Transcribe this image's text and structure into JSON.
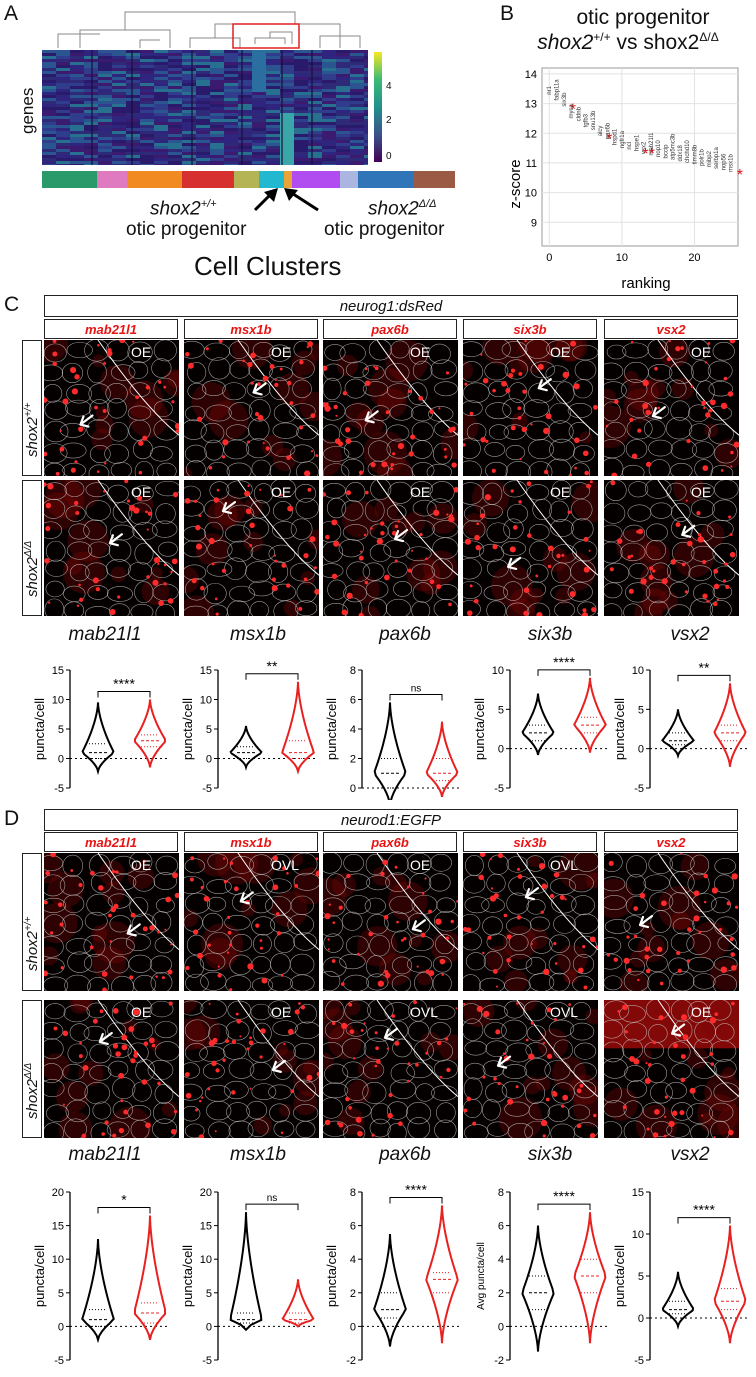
{
  "panel_a": {
    "letter": "A",
    "genes_label": "genes",
    "colorbar_ticks": [
      "4",
      "2",
      "0"
    ],
    "cluster_colors": [
      "#2a9a6a",
      "#e07ac0",
      "#f28a22",
      "#d63030",
      "#b4b455",
      "#22b8cf",
      "#e9a437",
      "#b04cf0",
      "#aab6e0",
      "#2f75b8",
      "#9a5a44"
    ],
    "label_wt_gene": "shox2",
    "label_wt_sup": "+/+",
    "label_wt_cell": "otic progenitor",
    "label_mut_gene": "shox2",
    "label_mut_sup": "Δ/Δ",
    "label_mut_cell": "otic progenitor",
    "xlabel": "Cell Clusters"
  },
  "panel_b": {
    "letter": "B",
    "title_line1": "otic progenitor",
    "title_wt": "shox2",
    "title_wt_sup": "+/+",
    "title_vs": " vs shox2",
    "title_mut_sup": "Δ/Δ",
    "chart_data": {
      "type": "scatter",
      "xlabel": "ranking",
      "ylabel": "z-score",
      "xlim": [
        -1,
        26
      ],
      "ylim": [
        8.2,
        14.2
      ],
      "xticks": [
        "0",
        "10",
        "20"
      ],
      "yticks": [
        "9",
        "10",
        "11",
        "12",
        "13",
        "14"
      ],
      "grid": true,
      "points": [
        {
          "label": "nr1",
          "x": 0,
          "y": 13.3
        },
        {
          "label": "fabp11a",
          "x": 1,
          "y": 13.1
        },
        {
          "label": "six3b",
          "x": 2,
          "y": 12.9,
          "star": "*"
        },
        {
          "label": "myca",
          "x": 3,
          "y": 12.5
        },
        {
          "label": "cldnb",
          "x": 4,
          "y": 12.4
        },
        {
          "label": "tgfb3",
          "x": 5,
          "y": 12.2
        },
        {
          "label": "snu13b",
          "x": 6,
          "y": 12.1
        },
        {
          "label": "alcy",
          "x": 7,
          "y": 11.9,
          "star": "*"
        },
        {
          "label": "pax6b",
          "x": 8,
          "y": 11.8
        },
        {
          "label": "hspd1",
          "x": 9,
          "y": 11.6
        },
        {
          "label": "ngfr1a",
          "x": 10,
          "y": 11.5
        },
        {
          "label": "ncl",
          "x": 11,
          "y": 11.45
        },
        {
          "label": "hspe1",
          "x": 12,
          "y": 11.4,
          "star": "**"
        },
        {
          "label": "vsx2",
          "x": 13,
          "y": 11.3
        },
        {
          "label": "mab21l1",
          "x": 14,
          "y": 11.25
        },
        {
          "label": "nop10",
          "x": 15,
          "y": 11.2
        },
        {
          "label": "bccip",
          "x": 16,
          "y": 11.15
        },
        {
          "label": "atp5mc3b",
          "x": 17,
          "y": 11.1
        },
        {
          "label": "ddx18",
          "x": 18,
          "y": 11.05
        },
        {
          "label": "chchd10",
          "x": 19,
          "y": 11.0
        },
        {
          "label": "timm8b",
          "x": 20,
          "y": 10.95
        },
        {
          "label": "polr1b",
          "x": 21,
          "y": 10.9
        },
        {
          "label": "mibp2",
          "x": 22,
          "y": 10.85
        },
        {
          "label": "serbp1a",
          "x": 23,
          "y": 10.8
        },
        {
          "label": "nop56",
          "x": 24,
          "y": 10.75
        },
        {
          "label": "msx1b",
          "x": 25,
          "y": 10.7,
          "star": "*"
        }
      ]
    }
  },
  "panel_c": {
    "letter": "C",
    "reporter": "neurog1:dsRed",
    "genes": [
      "mab21l1",
      "msx1b",
      "pax6b",
      "six3b",
      "vsx2"
    ],
    "row_wt_gene": "shox2",
    "row_wt_sup": "+/+",
    "row_mut_gene": "shox2",
    "row_mut_sup": "Δ/Δ",
    "tags_wt": [
      "OE",
      "OE",
      "OE",
      "OE",
      "OE"
    ],
    "tags_mut": [
      "OE",
      "OE",
      "OE",
      "OE",
      "OE"
    ],
    "ylabel": "puncta/cell",
    "chart_data": [
      {
        "type": "violin",
        "gene": "mab21l1",
        "sig": "****",
        "ylim": [
          -5,
          15
        ],
        "yticks": [
          "15",
          "10",
          "5",
          "0",
          "-5"
        ],
        "ylabel": "puncta/cell",
        "series": [
          {
            "group": "shox2+/+",
            "color": "#000000",
            "median": 1,
            "q1": 0,
            "q3": 2.5,
            "min": -2.2,
            "max": 9.5
          },
          {
            "group": "shox2Δ/Δ",
            "color": "#e82020",
            "median": 3,
            "q1": 2,
            "q3": 4,
            "min": -1.5,
            "max": 10
          }
        ]
      },
      {
        "type": "violin",
        "gene": "msx1b",
        "sig": "**",
        "ylim": [
          -5,
          15
        ],
        "yticks": [
          "15",
          "10",
          "5",
          "0",
          "-5"
        ],
        "ylabel": "puncta/cell",
        "series": [
          {
            "group": "shox2+/+",
            "color": "#000000",
            "median": 1,
            "q1": 0,
            "q3": 2,
            "min": -1.5,
            "max": 5.5
          },
          {
            "group": "shox2Δ/Δ",
            "color": "#e82020",
            "median": 1,
            "q1": 0,
            "q3": 3,
            "min": -2.2,
            "max": 13
          }
        ]
      },
      {
        "type": "violin",
        "gene": "pax6b",
        "sig": "ns",
        "ylim": [
          0,
          8
        ],
        "yticks": [
          "8",
          "6",
          "4",
          "2",
          "0"
        ],
        "ylabel": "puncta/cell",
        "series": [
          {
            "group": "shox2+/+",
            "color": "#000000",
            "median": 1,
            "q1": 0,
            "q3": 2,
            "min": -1.2,
            "max": 5.8
          },
          {
            "group": "shox2Δ/Δ",
            "color": "#e82020",
            "median": 1,
            "q1": 0.5,
            "q3": 2,
            "min": -0.6,
            "max": 4.5
          }
        ]
      },
      {
        "type": "violin",
        "gene": "six3b",
        "sig": "****",
        "ylim": [
          -5,
          10
        ],
        "yticks": [
          "10",
          "5",
          "0",
          "-5"
        ],
        "ylabel": "puncta/cell",
        "series": [
          {
            "group": "shox2+/+",
            "color": "#000000",
            "median": 2,
            "q1": 1,
            "q3": 3,
            "min": -0.8,
            "max": 7
          },
          {
            "group": "shox2Δ/Δ",
            "color": "#e82020",
            "median": 3,
            "q1": 2,
            "q3": 4,
            "min": -0.5,
            "max": 9
          }
        ]
      },
      {
        "type": "violin",
        "gene": "vsx2",
        "sig": "**",
        "ylim": [
          -5,
          10
        ],
        "yticks": [
          "10",
          "5",
          "0",
          "-5"
        ],
        "ylabel": "puncta/cell",
        "series": [
          {
            "group": "shox2+/+",
            "color": "#000000",
            "median": 1,
            "q1": 0.5,
            "q3": 2,
            "min": -0.9,
            "max": 5
          },
          {
            "group": "shox2Δ/Δ",
            "color": "#e82020",
            "median": 2,
            "q1": 1,
            "q3": 3,
            "min": -2.3,
            "max": 8.3
          }
        ]
      }
    ]
  },
  "panel_d": {
    "letter": "D",
    "reporter": "neurod1:EGFP",
    "genes": [
      "mab21l1",
      "msx1b",
      "pax6b",
      "six3b",
      "vsx2"
    ],
    "row_wt_gene": "shox2",
    "row_wt_sup": "+/+",
    "row_mut_gene": "shox2",
    "row_mut_sup": "Δ/Δ",
    "tags_wt": [
      "OE",
      "OVL",
      "OE",
      "OVL",
      ""
    ],
    "tags_mut": [
      "OE",
      "OE",
      "OVL",
      "OVL",
      "OE"
    ],
    "chart_data": [
      {
        "type": "violin",
        "gene": "mab21l1",
        "sig": "*",
        "ylim": [
          -5,
          20
        ],
        "yticks": [
          "20",
          "15",
          "10",
          "5",
          "0",
          "-5"
        ],
        "ylabel": "puncta/cell",
        "series": [
          {
            "group": "shox2+/+",
            "color": "#000000",
            "median": 1,
            "q1": 0,
            "q3": 2.5,
            "min": -2,
            "max": 13
          },
          {
            "group": "shox2Δ/Δ",
            "color": "#e82020",
            "median": 2,
            "q1": 0.5,
            "q3": 3.5,
            "min": -2,
            "max": 16.5
          }
        ]
      },
      {
        "type": "violin",
        "gene": "msx1b",
        "sig": "ns",
        "ylim": [
          -5,
          20
        ],
        "yticks": [
          "20",
          "15",
          "10",
          "5",
          "0",
          "-5"
        ],
        "ylabel": "puncta/cell",
        "series": [
          {
            "group": "shox2+/+",
            "color": "#000000",
            "median": 1,
            "q1": 0.5,
            "q3": 2,
            "min": -0.5,
            "max": 17
          },
          {
            "group": "shox2Δ/Δ",
            "color": "#e82020",
            "median": 1,
            "q1": 0.5,
            "q3": 2,
            "min": 0,
            "max": 7
          }
        ]
      },
      {
        "type": "violin",
        "gene": "pax6b",
        "sig": "****",
        "ylim": [
          -2,
          8
        ],
        "yticks": [
          "8",
          "6",
          "4",
          "2",
          "0",
          "-2"
        ],
        "ylabel": "puncta/cell",
        "series": [
          {
            "group": "shox2+/+",
            "color": "#000000",
            "median": 1,
            "q1": 0.5,
            "q3": 2,
            "min": -1.2,
            "max": 5.5
          },
          {
            "group": "shox2Δ/Δ",
            "color": "#e82020",
            "median": 2.8,
            "q1": 2,
            "q3": 3.2,
            "min": -1,
            "max": 7.2
          }
        ]
      },
      {
        "type": "violin",
        "gene": "six3b",
        "sig": "****",
        "ylim": [
          -2,
          8
        ],
        "yticks": [
          "8",
          "6",
          "4",
          "2",
          "0",
          "-2"
        ],
        "ylabel": "Avg puncta/cell",
        "series": [
          {
            "group": "shox2+/+",
            "color": "#000000",
            "median": 2,
            "q1": 1,
            "q3": 3,
            "min": -1.5,
            "max": 6
          },
          {
            "group": "shox2Δ/Δ",
            "color": "#e82020",
            "median": 3,
            "q1": 2,
            "q3": 4,
            "min": -1,
            "max": 6.8
          }
        ]
      },
      {
        "type": "violin",
        "gene": "vsx2",
        "sig": "****",
        "ylim": [
          -5,
          15
        ],
        "yticks": [
          "15",
          "10",
          "5",
          "0",
          "-5"
        ],
        "ylabel": "puncta/cell",
        "series": [
          {
            "group": "shox2+/+",
            "color": "#000000",
            "median": 1,
            "q1": 0.5,
            "q3": 2,
            "min": -1,
            "max": 5.5
          },
          {
            "group": "shox2Δ/Δ",
            "color": "#e82020",
            "median": 2,
            "q1": 1,
            "q3": 3.5,
            "min": -3,
            "max": 11
          }
        ]
      }
    ]
  }
}
